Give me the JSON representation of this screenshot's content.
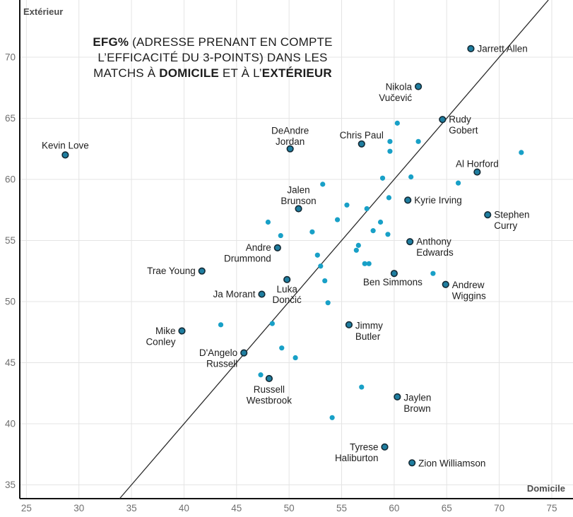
{
  "colors": {
    "background": "#ffffff",
    "grid": "#e4e4e4",
    "axis": "#111111",
    "identity_line": "#2b2b2b",
    "unlabeled_point": "#18a0c7",
    "labeled_point_fill": "#1f7ea0",
    "labeled_point_stroke": "#142a35",
    "title_text": "#1d1d1d",
    "label_text": "#202020",
    "tick_text": "#707070",
    "axis_title_text": "#4d4d4d"
  },
  "chart_data": {
    "type": "scatter",
    "title_lines": [
      [
        {
          "text": "EFG%",
          "bold": true
        },
        {
          "text": " (ADRESSE PRENANT EN COMPTE",
          "bold": false
        }
      ],
      [
        {
          "text": "L’EFFICACITÉ DU 3-POINTS) DANS LES",
          "bold": false
        }
      ],
      [
        {
          "text": "MATCHS À ",
          "bold": false
        },
        {
          "text": "DOMICILE",
          "bold": true
        },
        {
          "text": " ET À L’",
          "bold": false
        },
        {
          "text": "EXTÉRIEUR",
          "bold": true
        }
      ]
    ],
    "xlabel": "Domicile",
    "ylabel": "Extérieur",
    "x_ticks": [
      25,
      30,
      35,
      40,
      45,
      50,
      55,
      60,
      65,
      70,
      75
    ],
    "y_ticks": [
      35,
      40,
      45,
      50,
      55,
      60,
      65,
      70
    ],
    "xlim": [
      24.37,
      77.02
    ],
    "ylim": [
      33.87,
      74.68
    ],
    "grid": true,
    "identity_line": true,
    "legend": "none",
    "players": [
      {
        "name": "Kevin Love",
        "home": 28.7,
        "away": 62.0,
        "label_lines": [
          "Kevin Love"
        ],
        "anchor": "middle",
        "dx": 0,
        "dy": [
          -9
        ]
      },
      {
        "name": "Trae Young",
        "home": 41.7,
        "away": 52.5,
        "label_lines": [
          "Trae Young"
        ],
        "anchor": "end",
        "dx": -9,
        "dy": [
          4.5
        ]
      },
      {
        "name": "DeAndre Jordan",
        "home": 50.1,
        "away": 62.5,
        "label_lines": [
          "DeAndre",
          "Jordan"
        ],
        "anchor": "middle",
        "dx": 0,
        "dy": [
          -21,
          -5.5
        ]
      },
      {
        "name": "Chris Paul",
        "home": 56.9,
        "away": 62.9,
        "label_lines": [
          "Chris Paul"
        ],
        "anchor": "middle",
        "dx": 0,
        "dy": [
          -8
        ]
      },
      {
        "name": "Nikola Vučević",
        "home": 62.3,
        "away": 67.6,
        "label_lines": [
          "Nikola",
          "Vučević"
        ],
        "anchor": "end",
        "dx": -9,
        "dy": [
          5,
          20.5
        ]
      },
      {
        "name": "Rudy Gobert",
        "home": 64.6,
        "away": 64.9,
        "label_lines": [
          "Rudy",
          "Gobert"
        ],
        "anchor": "start",
        "dx": 9,
        "dy": [
          4.5,
          20
        ]
      },
      {
        "name": "Jarrett Allen",
        "home": 67.3,
        "away": 70.7,
        "label_lines": [
          "Jarrett Allen"
        ],
        "anchor": "start",
        "dx": 9,
        "dy": [
          4.5
        ]
      },
      {
        "name": "Al Horford",
        "home": 67.9,
        "away": 60.6,
        "label_lines": [
          "Al Horford"
        ],
        "anchor": "middle",
        "dx": 0,
        "dy": [
          -7
        ]
      },
      {
        "name": "Stephen Curry",
        "home": 68.9,
        "away": 57.1,
        "label_lines": [
          "Stephen",
          "Curry"
        ],
        "anchor": "start",
        "dx": 9,
        "dy": [
          4.5,
          20
        ]
      },
      {
        "name": "Kyrie Irving",
        "home": 61.3,
        "away": 58.3,
        "label_lines": [
          "Kyrie Irving"
        ],
        "anchor": "start",
        "dx": 9,
        "dy": [
          4.5
        ]
      },
      {
        "name": "Anthony Edwards",
        "home": 61.5,
        "away": 54.9,
        "label_lines": [
          "Anthony",
          "Edwards"
        ],
        "anchor": "start",
        "dx": 9,
        "dy": [
          4.5,
          20
        ]
      },
      {
        "name": "Ben Simmons",
        "home": 60.0,
        "away": 52.3,
        "label_lines": [
          "Ben Simmons"
        ],
        "anchor": "middle",
        "dx": -2,
        "dy": [
          17
        ]
      },
      {
        "name": "Andrew Wiggins",
        "home": 64.9,
        "away": 51.4,
        "label_lines": [
          "Andrew",
          "Wiggins"
        ],
        "anchor": "start",
        "dx": 9,
        "dy": [
          5.5,
          21
        ]
      },
      {
        "name": "Jalen Brunson",
        "home": 50.9,
        "away": 57.6,
        "label_lines": [
          "Jalen",
          "Brunson"
        ],
        "anchor": "middle",
        "dx": 0,
        "dy": [
          -22,
          -6.5
        ]
      },
      {
        "name": "Andre Drummond",
        "home": 48.9,
        "away": 54.4,
        "label_lines": [
          "Andre",
          "Drummond"
        ],
        "anchor": "end",
        "dx": -9,
        "dy": [
          4,
          19.5
        ]
      },
      {
        "name": "Luka Dončić",
        "home": 49.8,
        "away": 51.8,
        "label_lines": [
          "Luka",
          "Dončić"
        ],
        "anchor": "middle",
        "dx": 0,
        "dy": [
          18,
          33
        ]
      },
      {
        "name": "Ja Morant",
        "home": 47.4,
        "away": 50.6,
        "label_lines": [
          "Ja Morant"
        ],
        "anchor": "end",
        "dx": -9,
        "dy": [
          4.5
        ]
      },
      {
        "name": "Mike Conley",
        "home": 39.8,
        "away": 47.6,
        "label_lines": [
          "Mike",
          "Conley"
        ],
        "anchor": "end",
        "dx": -9,
        "dy": [
          4.5,
          20
        ]
      },
      {
        "name": "D’Angelo Russell",
        "home": 45.7,
        "away": 45.8,
        "label_lines": [
          "D'Angelo",
          "Russell"
        ],
        "anchor": "end",
        "dx": -9,
        "dy": [
          4.5,
          20
        ]
      },
      {
        "name": "Jimmy Butler",
        "home": 55.7,
        "away": 48.1,
        "label_lines": [
          "Jimmy",
          "Butler"
        ],
        "anchor": "start",
        "dx": 9,
        "dy": [
          5.5,
          21
        ]
      },
      {
        "name": "Russell Westbrook",
        "home": 48.1,
        "away": 43.7,
        "label_lines": [
          "Russell",
          "Westbrook"
        ],
        "anchor": "middle",
        "dx": 0,
        "dy": [
          20,
          35.5
        ]
      },
      {
        "name": "Jaylen Brown",
        "home": 60.3,
        "away": 42.2,
        "label_lines": [
          "Jaylen",
          "Brown"
        ],
        "anchor": "start",
        "dx": 9,
        "dy": [
          5.5,
          21
        ]
      },
      {
        "name": "Tyrese Haliburton",
        "home": 59.1,
        "away": 38.1,
        "label_lines": [
          "Tyrese",
          "Haliburton"
        ],
        "anchor": "end",
        "dx": -9,
        "dy": [
          4.5,
          20
        ]
      },
      {
        "name": "Zion Williamson",
        "home": 61.7,
        "away": 36.8,
        "label_lines": [
          "Zion Williamson"
        ],
        "anchor": "start",
        "dx": 9,
        "dy": [
          5
        ]
      }
    ],
    "unlabeled_points": [
      [
        60.3,
        64.6
      ],
      [
        59.6,
        63.1
      ],
      [
        62.3,
        63.1
      ],
      [
        59.6,
        62.3
      ],
      [
        72.1,
        62.2
      ],
      [
        58.9,
        60.1
      ],
      [
        61.6,
        60.2
      ],
      [
        66.1,
        59.7
      ],
      [
        53.2,
        59.6
      ],
      [
        59.5,
        58.5
      ],
      [
        55.5,
        57.9
      ],
      [
        57.4,
        57.6
      ],
      [
        48.0,
        56.5
      ],
      [
        54.6,
        56.7
      ],
      [
        58.7,
        56.5
      ],
      [
        52.2,
        55.7
      ],
      [
        58.0,
        55.8
      ],
      [
        59.4,
        55.5
      ],
      [
        49.2,
        55.4
      ],
      [
        56.6,
        54.6
      ],
      [
        56.4,
        54.2
      ],
      [
        52.7,
        53.8
      ],
      [
        57.2,
        53.1
      ],
      [
        57.6,
        53.1
      ],
      [
        53.0,
        52.9
      ],
      [
        63.7,
        52.3
      ],
      [
        53.4,
        51.7
      ],
      [
        53.7,
        49.9
      ],
      [
        43.5,
        48.1
      ],
      [
        48.4,
        48.2
      ],
      [
        49.3,
        46.2
      ],
      [
        50.6,
        45.4
      ],
      [
        47.3,
        44.0
      ],
      [
        56.9,
        43.0
      ],
      [
        54.1,
        40.5
      ]
    ]
  }
}
